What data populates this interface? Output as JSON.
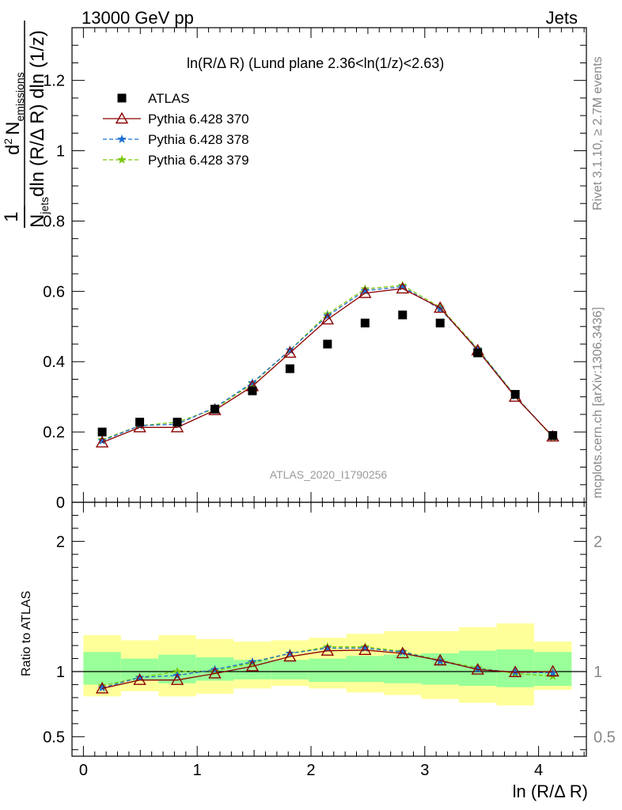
{
  "header": {
    "left": "13000 GeV pp",
    "right": "Jets"
  },
  "side_labels": {
    "rivet": "Rivet 3.1.10, ≥ 2.7M events",
    "mcplots": "mcplots.cern.ch [arXiv:1306.3436]"
  },
  "chart_data": [
    {
      "type": "scatter",
      "panel": "main",
      "title": "ln(R/Δ R) (Lund plane 2.36<ln(1/z)<2.63)",
      "ylabel": "1/N_jets d²N_emissions / dln(R/Δ R) dln(1/z)",
      "ylabel_parts": {
        "frac_num": "1",
        "num_d": "d",
        "num_sup": "2",
        "num_N": "N",
        "num_sub": "emissions",
        "den_N": "N",
        "den_sub": "jets",
        "den_rest": "dln (R/Δ R) dln (1/z)"
      },
      "xlim": [
        -0.1,
        4.42
      ],
      "ylim": [
        0,
        1.35
      ],
      "yticks": [
        0,
        0.2,
        0.4,
        0.6,
        0.8,
        1,
        1.2
      ],
      "ytick_labels": [
        "0",
        "0.2",
        "0.4",
        "0.6",
        "0.8",
        "1",
        "1.2"
      ],
      "x": [
        0.165,
        0.495,
        0.825,
        1.155,
        1.485,
        1.815,
        2.145,
        2.475,
        2.805,
        3.135,
        3.465,
        3.795,
        4.125
      ],
      "legend_position": "top-left",
      "watermark": "ATLAS_2020_I1790256",
      "series": [
        {
          "name": "ATLAS",
          "marker": "square",
          "color": "#000000",
          "values": [
            0.2,
            0.228,
            0.228,
            0.265,
            0.317,
            0.38,
            0.45,
            0.51,
            0.533,
            0.51,
            0.425,
            0.307,
            0.19
          ]
        },
        {
          "name": "Pythia 6.428 370",
          "marker": "open-triangle",
          "line": "solid",
          "color": "#8b0000",
          "values": [
            0.17,
            0.213,
            0.213,
            0.262,
            0.33,
            0.425,
            0.52,
            0.595,
            0.608,
            0.553,
            0.432,
            0.3,
            0.187
          ]
        },
        {
          "name": "Pythia 6.428 378",
          "marker": "star",
          "line": "dashed",
          "color": "#1e6fd0",
          "values": [
            0.175,
            0.218,
            0.222,
            0.27,
            0.34,
            0.433,
            0.53,
            0.602,
            0.613,
            0.55,
            0.435,
            0.302,
            0.186
          ]
        },
        {
          "name": "Pythia 6.428 379",
          "marker": "star",
          "line": "dashed",
          "color": "#7ac70c",
          "values": [
            0.178,
            0.218,
            0.228,
            0.266,
            0.337,
            0.433,
            0.535,
            0.607,
            0.617,
            0.555,
            0.437,
            0.303,
            0.184
          ]
        }
      ]
    },
    {
      "type": "scatter",
      "panel": "ratio",
      "ylabel": "Ratio to ATLAS",
      "xlabel": "ln (R/Δ R)",
      "xlim": [
        -0.1,
        4.42
      ],
      "ylim": [
        0.35,
        2.3
      ],
      "yticks": [
        0.5,
        1,
        2
      ],
      "ytick_labels": [
        "0.5",
        "1",
        "2"
      ],
      "xticks": [
        0,
        1,
        2,
        3,
        4
      ],
      "xtick_labels": [
        "0",
        "1",
        "2",
        "3",
        "4"
      ],
      "x": [
        0.165,
        0.495,
        0.825,
        1.155,
        1.485,
        1.815,
        2.145,
        2.475,
        2.805,
        3.135,
        3.465,
        3.795,
        4.125
      ],
      "bin_edges": [
        0,
        0.33,
        0.66,
        0.99,
        1.32,
        1.65,
        1.98,
        2.31,
        2.64,
        2.97,
        3.3,
        3.63,
        3.96,
        4.29
      ],
      "band_inner": {
        "color": "#99ff99",
        "low": [
          0.9,
          0.93,
          0.91,
          0.93,
          0.94,
          0.94,
          0.92,
          0.92,
          0.91,
          0.9,
          0.89,
          0.88,
          0.89
        ],
        "high": [
          1.15,
          1.1,
          1.13,
          1.11,
          1.09,
          1.09,
          1.1,
          1.12,
          1.13,
          1.14,
          1.16,
          1.17,
          1.15
        ]
      },
      "band_outer": {
        "color": "#ffff99",
        "low": [
          0.81,
          0.85,
          0.81,
          0.83,
          0.87,
          0.89,
          0.87,
          0.84,
          0.82,
          0.79,
          0.76,
          0.74,
          0.86
        ],
        "high": [
          1.28,
          1.24,
          1.28,
          1.25,
          1.23,
          1.24,
          1.26,
          1.29,
          1.31,
          1.31,
          1.34,
          1.37,
          1.23
        ]
      },
      "series": [
        {
          "name": "Pythia 6.428 370",
          "marker": "open-triangle",
          "line": "solid",
          "color": "#8b0000",
          "values": [
            0.87,
            0.935,
            0.935,
            0.985,
            1.04,
            1.115,
            1.16,
            1.165,
            1.14,
            1.085,
            1.015,
            0.995,
            1.0
          ]
        },
        {
          "name": "Pythia 6.428 378",
          "marker": "star",
          "line": "dashed",
          "color": "#1e6fd0",
          "values": [
            0.875,
            0.955,
            0.97,
            1.015,
            1.075,
            1.14,
            1.18,
            1.18,
            1.15,
            1.08,
            1.02,
            0.995,
            0.99
          ]
        },
        {
          "name": "Pythia 6.428 379",
          "marker": "star",
          "line": "dashed",
          "color": "#7ac70c",
          "values": [
            0.89,
            0.955,
            1.0,
            1.005,
            1.065,
            1.14,
            1.19,
            1.19,
            1.155,
            1.085,
            1.03,
            0.985,
            0.965
          ]
        }
      ]
    }
  ]
}
